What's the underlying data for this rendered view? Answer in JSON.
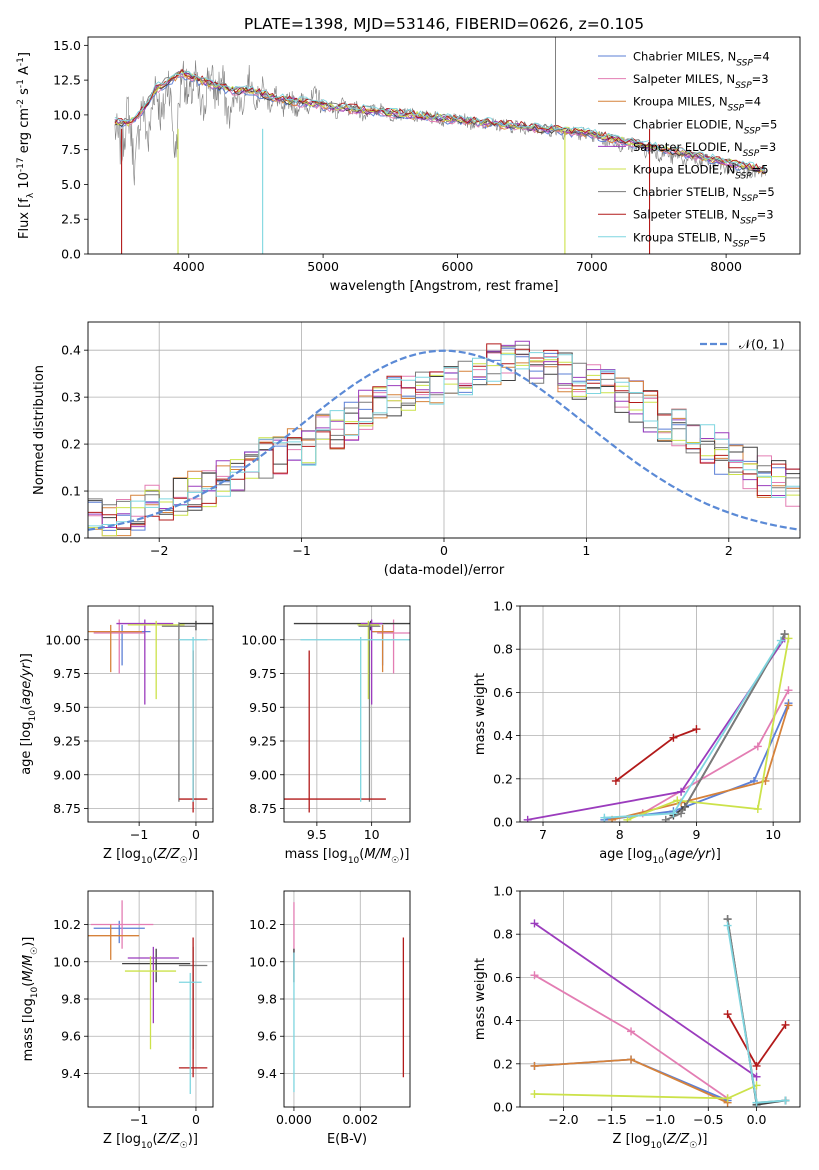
{
  "figure": {
    "title": "PLATE=1398, MJD=53146, FIBERID=0626, z=0.105"
  },
  "colors": {
    "Chabrier MILES": "#5b7fd6",
    "Salpeter MILES": "#e37db3",
    "Kroupa MILES": "#d6823a",
    "Chabrier ELODIE": "#404040",
    "Salpeter ELODIE": "#9b3cbd",
    "Kroupa ELODIE": "#cce24a",
    "Chabrier STELIB": "#7a7a7a",
    "Salpeter STELIB": "#b21a1a",
    "Kroupa STELIB": "#7fd6e0",
    "data": "#808080",
    "normal": "#5b8ad6"
  },
  "chart_data": [
    {
      "id": "spectrum",
      "type": "line",
      "title": "PLATE=1398, MJD=53146, FIBERID=0626, z=0.105",
      "xlabel": "wavelength [Angstrom, rest frame]",
      "ylabel": "Flux [f_λ 10^-17 erg cm^-2 s^-1 A^-1]",
      "xlim": [
        3250,
        8550
      ],
      "ylim": [
        0,
        15.6
      ],
      "xticks": [
        4000,
        5000,
        6000,
        7000,
        8000
      ],
      "yticks": [
        0.0,
        2.5,
        5.0,
        7.5,
        10.0,
        12.5,
        15.0
      ],
      "grid": false,
      "legend": "top-right",
      "legend_entries": [
        {
          "series": "Chabrier MILES",
          "label": "Chabrier MILES, N_SSP=4"
        },
        {
          "series": "Salpeter MILES",
          "label": "Salpeter MILES, N_SSP=3"
        },
        {
          "series": "Kroupa MILES",
          "label": "Kroupa MILES, N_SSP=4"
        },
        {
          "series": "Chabrier ELODIE",
          "label": "Chabrier ELODIE, N_SSP=5"
        },
        {
          "series": "Salpeter ELODIE",
          "label": "Salpeter ELODIE, N_SSP=3"
        },
        {
          "series": "Kroupa ELODIE",
          "label": "Kroupa ELODIE, N_SSP=5"
        },
        {
          "series": "Chabrier STELIB",
          "label": "Chabrier STELIB, N_SSP=5"
        },
        {
          "series": "Salpeter STELIB",
          "label": "Salpeter STELIB, N_SSP=3"
        },
        {
          "series": "Kroupa STELIB",
          "label": "Kroupa STELIB, N_SSP=5"
        }
      ],
      "data_wavelength": [
        3450,
        3500,
        3550,
        3600,
        3650,
        3700,
        3750,
        3800,
        3850,
        3900,
        3950,
        4000,
        4050,
        4100,
        4150,
        4200,
        4250,
        4300,
        4350,
        4400,
        4450,
        4500,
        4550,
        4600,
        4650,
        4700,
        4750,
        4800,
        4850,
        4900,
        4950,
        5000,
        5050,
        5100,
        5150,
        5200,
        5250,
        5300,
        5350,
        5400,
        5450,
        5500,
        5550,
        5600,
        5650,
        5700,
        5750,
        5800,
        5850,
        5900,
        5950,
        6000,
        6050,
        6100,
        6150,
        6200,
        6250,
        6300,
        6350,
        6400,
        6450,
        6500,
        6550,
        6600,
        6650,
        6700,
        6750,
        6800,
        6850,
        6900,
        6950,
        7000,
        7050,
        7100,
        7150,
        7200,
        7250,
        7300,
        7350,
        7400,
        7450,
        7500,
        7550,
        7600,
        7650,
        7700,
        7750,
        7800,
        7850,
        7900,
        7950,
        8000,
        8050,
        8100,
        8150,
        8200,
        8250,
        8300
      ],
      "data_flux": [
        9.0,
        7.5,
        10.5,
        6.0,
        11.0,
        8.0,
        12.5,
        9.5,
        12.8,
        7.0,
        13.5,
        11.0,
        12.5,
        10.0,
        13.0,
        11.5,
        12.5,
        9.5,
        11.8,
        10.5,
        12.8,
        11.0,
        12.0,
        10.8,
        11.5,
        10.0,
        11.3,
        10.5,
        11.0,
        10.8,
        11.5,
        10.5,
        10.8,
        10.0,
        10.9,
        10.2,
        10.6,
        9.8,
        10.4,
        10.3,
        10.5,
        9.9,
        10.1,
        10.0,
        10.2,
        9.6,
        10.0,
        9.8,
        9.9,
        9.4,
        9.8,
        9.6,
        9.7,
        9.3,
        9.5,
        9.4,
        9.5,
        9.2,
        9.4,
        9.1,
        9.3,
        9.0,
        9.2,
        8.9,
        9.1,
        8.8,
        9.0,
        8.6,
        8.9,
        8.5,
        8.8,
        8.3,
        8.6,
        8.0,
        8.3,
        7.6,
        8.1,
        7.6,
        7.9,
        7.3,
        7.7,
        7.0,
        7.4,
        6.8,
        7.2,
        6.5,
        7.0,
        6.3,
        6.9,
        6.2,
        6.6,
        6.0,
        6.3,
        5.9,
        6.1,
        5.8,
        5.9,
        5.7
      ],
      "model_wavelength": [
        3450,
        3550,
        3650,
        3750,
        3850,
        3950,
        4050,
        4150,
        4250,
        4350,
        4450,
        4550,
        4650,
        4750,
        4850,
        4950,
        5050,
        5150,
        5250,
        5350,
        5450,
        5550,
        5650,
        5750,
        5850,
        5950,
        6050,
        6150,
        6250,
        6350,
        6450,
        6550,
        6650,
        6750,
        6850,
        6950,
        7050,
        7150,
        7250,
        7350,
        7450,
        7550,
        7650,
        7750,
        7850,
        7950,
        8050,
        8150,
        8250,
        8300
      ],
      "model_flux": [
        9.5,
        9.4,
        10.2,
        11.8,
        12.5,
        13.0,
        12.6,
        12.3,
        12.0,
        11.7,
        11.8,
        11.5,
        11.2,
        11.0,
        10.9,
        10.8,
        10.6,
        10.5,
        10.4,
        10.3,
        10.2,
        10.1,
        10.0,
        9.9,
        9.8,
        9.7,
        9.6,
        9.5,
        9.4,
        9.3,
        9.2,
        9.1,
        9.0,
        8.9,
        8.8,
        8.7,
        8.5,
        8.3,
        8.1,
        7.9,
        7.7,
        7.5,
        7.3,
        7.1,
        6.9,
        6.7,
        6.5,
        6.3,
        6.1,
        6.0
      ]
    },
    {
      "id": "residuals",
      "type": "bar",
      "xlabel": "(data-model)/error",
      "ylabel": "Normed distribution",
      "xlim": [
        -2.5,
        2.5
      ],
      "ylim": [
        0,
        0.46
      ],
      "xticks": [
        -2,
        -1,
        0,
        1,
        2
      ],
      "yticks": [
        0.0,
        0.1,
        0.2,
        0.3,
        0.4
      ],
      "grid": true,
      "legend": "top-right",
      "legend_label": "𝒩(0, 1)",
      "bin_width": 0.1,
      "hist_base": [
        0.04,
        0.04,
        0.05,
        0.06,
        0.07,
        0.08,
        0.09,
        0.1,
        0.11,
        0.12,
        0.14,
        0.15,
        0.17,
        0.18,
        0.19,
        0.2,
        0.22,
        0.23,
        0.25,
        0.27,
        0.28,
        0.3,
        0.31,
        0.32,
        0.33,
        0.34,
        0.35,
        0.36,
        0.37,
        0.38,
        0.38,
        0.37,
        0.36,
        0.35,
        0.34,
        0.33,
        0.32,
        0.31,
        0.29,
        0.27,
        0.25,
        0.24,
        0.22,
        0.2,
        0.18,
        0.17,
        0.15,
        0.13,
        0.12,
        0.11
      ]
    },
    {
      "id": "age-vs-Z",
      "type": "scatter",
      "xlabel": "Z [log10(Z/Z☉)]",
      "ylabel": "age  [log10(age/yr)]",
      "xlim": [
        -1.9,
        0.3
      ],
      "ylim": [
        8.65,
        10.25
      ],
      "xticks": [
        -1,
        0
      ],
      "yticks": [
        8.75,
        9.0,
        9.25,
        9.5,
        9.75,
        10.0
      ],
      "grid": true,
      "points": [
        {
          "series": "Chabrier MILES",
          "x": -1.3,
          "y": 10.06,
          "xerr": 0.5,
          "yerr_lo": 0.25,
          "yerr_hi": 0.05
        },
        {
          "series": "Salpeter MILES",
          "x": -1.35,
          "y": 10.05,
          "xerr": 0.45,
          "yerr_lo": 0.3,
          "yerr_hi": 0.1
        },
        {
          "series": "Kroupa MILES",
          "x": -1.5,
          "y": 10.06,
          "xerr": 0.55,
          "yerr_lo": 0.3,
          "yerr_hi": 0.05
        },
        {
          "series": "Chabrier ELODIE",
          "x": 0.0,
          "y": 10.12,
          "xerr": 0.3,
          "yerr_lo": 0.05,
          "yerr_hi": 0.02
        },
        {
          "series": "Salpeter ELODIE",
          "x": -0.9,
          "y": 10.12,
          "xerr": 0.5,
          "yerr_lo": 0.6,
          "yerr_hi": 0.03
        },
        {
          "series": "Kroupa ELODIE",
          "x": -0.7,
          "y": 10.11,
          "xerr": 0.5,
          "yerr_lo": 0.55,
          "yerr_hi": 0.03
        },
        {
          "series": "Chabrier STELIB",
          "x": -0.3,
          "y": 10.1,
          "xerr": 0.3,
          "yerr_lo": 1.3,
          "yerr_hi": 0.03
        },
        {
          "series": "Salpeter STELIB",
          "x": -0.05,
          "y": 8.82,
          "xerr": 0.25,
          "yerr_lo": 0.1,
          "yerr_hi": 1.1
        },
        {
          "series": "Kroupa STELIB",
          "x": -0.05,
          "y": 10.0,
          "xerr": 0.25,
          "yerr_lo": 1.2,
          "yerr_hi": 0.02
        }
      ]
    },
    {
      "id": "age-vs-mass",
      "type": "scatter",
      "xlabel": "mass [log10(M/M☉)]",
      "ylabel": "",
      "xlim": [
        9.2,
        10.35
      ],
      "ylim": [
        8.65,
        10.25
      ],
      "xticks": [
        9.5,
        10.0
      ],
      "yticks": [
        8.75,
        9.0,
        9.25,
        9.5,
        9.75,
        10.0
      ],
      "grid": true,
      "points": [
        {
          "series": "Chabrier MILES",
          "x": 10.1,
          "y": 10.06,
          "xerr": 0.1,
          "yerr_lo": 0.25,
          "yerr_hi": 0.05
        },
        {
          "series": "Salpeter MILES",
          "x": 10.2,
          "y": 10.05,
          "xerr": 0.15,
          "yerr_lo": 0.3,
          "yerr_hi": 0.1
        },
        {
          "series": "Kroupa MILES",
          "x": 10.1,
          "y": 10.06,
          "xerr": 0.1,
          "yerr_lo": 0.3,
          "yerr_hi": 0.05
        },
        {
          "series": "Chabrier ELODIE",
          "x": 9.99,
          "y": 10.12,
          "xerr": 0.7,
          "yerr_lo": 0.05,
          "yerr_hi": 0.02
        },
        {
          "series": "Salpeter ELODIE",
          "x": 10.0,
          "y": 10.12,
          "xerr": 0.1,
          "yerr_lo": 0.6,
          "yerr_hi": 0.03
        },
        {
          "series": "Kroupa ELODIE",
          "x": 9.97,
          "y": 10.11,
          "xerr": 0.1,
          "yerr_lo": 0.55,
          "yerr_hi": 0.03
        },
        {
          "series": "Chabrier STELIB",
          "x": 9.98,
          "y": 10.1,
          "xerr": 0.1,
          "yerr_lo": 1.3,
          "yerr_hi": 0.03
        },
        {
          "series": "Salpeter STELIB",
          "x": 9.43,
          "y": 8.82,
          "xerr": 0.7,
          "yerr_lo": 0.1,
          "yerr_hi": 1.1
        },
        {
          "series": "Kroupa STELIB",
          "x": 9.9,
          "y": 10.0,
          "xerr": 0.55,
          "yerr_lo": 1.2,
          "yerr_hi": 0.02
        }
      ]
    },
    {
      "id": "weight-vs-age",
      "type": "line",
      "xlabel": "age  [log10(age/yr)]",
      "ylabel": "mass weight",
      "xlim": [
        6.7,
        10.35
      ],
      "ylim": [
        0,
        1.0
      ],
      "xticks": [
        7,
        8,
        9,
        10
      ],
      "yticks": [
        0.0,
        0.2,
        0.4,
        0.6,
        0.8,
        1.0
      ],
      "grid": true,
      "series": [
        {
          "name": "Chabrier MILES",
          "x": [
            7.8,
            8.7,
            9.75,
            10.2
          ],
          "y": [
            0.01,
            0.05,
            0.19,
            0.55
          ]
        },
        {
          "name": "Salpeter MILES",
          "x": [
            8.3,
            9.8,
            10.2
          ],
          "y": [
            0.04,
            0.35,
            0.61
          ]
        },
        {
          "name": "Kroupa MILES",
          "x": [
            7.9,
            8.8,
            9.9,
            10.2
          ],
          "y": [
            0.01,
            0.09,
            0.19,
            0.54
          ]
        },
        {
          "name": "Chabrier ELODIE",
          "x": [
            8.7,
            8.85,
            10.15
          ],
          "y": [
            0.03,
            0.07,
            0.87
          ]
        },
        {
          "name": "Salpeter ELODIE",
          "x": [
            6.8,
            8.8,
            10.15
          ],
          "y": [
            0.01,
            0.14,
            0.85
          ]
        },
        {
          "name": "Kroupa ELODIE",
          "x": [
            8.1,
            8.75,
            9.8,
            10.2
          ],
          "y": [
            0.01,
            0.1,
            0.06,
            0.85
          ]
        },
        {
          "name": "Chabrier STELIB",
          "x": [
            8.6,
            8.8,
            10.15
          ],
          "y": [
            0.01,
            0.04,
            0.87
          ]
        },
        {
          "name": "Salpeter STELIB",
          "x": [
            7.95,
            8.7,
            9.0
          ],
          "y": [
            0.19,
            0.39,
            0.43
          ]
        },
        {
          "name": "Kroupa STELIB",
          "x": [
            7.8,
            8.7,
            10.1
          ],
          "y": [
            0.02,
            0.04,
            0.84
          ]
        }
      ]
    },
    {
      "id": "mass-vs-Z",
      "type": "scatter",
      "xlabel": "Z [log10(Z/Z☉)]",
      "ylabel": "mass [log10(M/M☉)]",
      "xlim": [
        -1.9,
        0.3
      ],
      "ylim": [
        9.22,
        10.38
      ],
      "xticks": [
        -1,
        0
      ],
      "yticks": [
        9.4,
        9.6,
        9.8,
        10.0,
        10.2
      ],
      "grid": true,
      "points": [
        {
          "series": "Chabrier MILES",
          "x": -1.35,
          "y": 10.18,
          "xerr": 0.45,
          "yerr_lo": 0.08,
          "yerr_hi": 0.04
        },
        {
          "series": "Salpeter MILES",
          "x": -1.3,
          "y": 10.2,
          "xerr": 0.55,
          "yerr_lo": 0.13,
          "yerr_hi": 0.13
        },
        {
          "series": "Kroupa MILES",
          "x": -1.5,
          "y": 10.14,
          "xerr": 0.5,
          "yerr_lo": 0.13,
          "yerr_hi": 0.06
        },
        {
          "series": "Chabrier ELODIE",
          "x": -0.7,
          "y": 9.99,
          "xerr": 0.6,
          "yerr_lo": 0.1,
          "yerr_hi": 0.08
        },
        {
          "series": "Salpeter ELODIE",
          "x": -0.75,
          "y": 10.02,
          "xerr": 0.45,
          "yerr_lo": 0.35,
          "yerr_hi": 0.06
        },
        {
          "series": "Kroupa ELODIE",
          "x": -0.8,
          "y": 9.95,
          "xerr": 0.45,
          "yerr_lo": 0.42,
          "yerr_hi": 0.08
        },
        {
          "series": "Chabrier STELIB",
          "x": -0.05,
          "y": 9.98,
          "xerr": 0.25,
          "yerr_lo": 0.45,
          "yerr_hi": 0.1
        },
        {
          "series": "Salpeter STELIB",
          "x": -0.05,
          "y": 9.43,
          "xerr": 0.25,
          "yerr_lo": 0.05,
          "yerr_hi": 0.7
        },
        {
          "series": "Kroupa STELIB",
          "x": -0.1,
          "y": 9.89,
          "xerr": 0.2,
          "yerr_lo": 0.6,
          "yerr_hi": 0.05
        }
      ]
    },
    {
      "id": "mass-vs-EBV",
      "type": "scatter",
      "xlabel": "E(B-V)",
      "ylabel": "",
      "xlim": [
        -0.0003,
        0.0035
      ],
      "ylim": [
        9.22,
        10.38
      ],
      "xticks": [
        0.0,
        0.002
      ],
      "xticklabels": [
        "0.000",
        "0.002"
      ],
      "yticks": [
        9.4,
        9.6,
        9.8,
        10.0,
        10.2
      ],
      "grid": true,
      "points": [
        {
          "series": "Salpeter MILES",
          "x": 0.0,
          "y": 10.1,
          "yerr_lo": 0.1,
          "yerr_hi": 0.22
        },
        {
          "series": "Chabrier ELODIE",
          "x": 0.0,
          "y": 9.99,
          "yerr_lo": 0.1,
          "yerr_hi": 0.08
        },
        {
          "series": "Kroupa STELIB",
          "x": 0.0,
          "y": 9.9,
          "yerr_lo": 0.6,
          "yerr_hi": 0.15
        },
        {
          "series": "Salpeter STELIB",
          "x": 0.0033,
          "y": 9.75,
          "yerr_lo": 0.37,
          "yerr_hi": 0.38
        }
      ]
    },
    {
      "id": "weight-vs-Z",
      "type": "line",
      "xlabel": "Z [log10(Z/Z☉)]",
      "ylabel": "mass weight",
      "xlim": [
        -2.45,
        0.45
      ],
      "ylim": [
        0,
        1.0
      ],
      "xticks": [
        -2.0,
        -1.5,
        -1.0,
        -0.5,
        0.0
      ],
      "yticks": [
        0.0,
        0.2,
        0.4,
        0.6,
        0.8,
        1.0
      ],
      "grid": true,
      "series": [
        {
          "name": "Chabrier MILES",
          "x": [
            -2.3,
            -1.3,
            -0.3
          ],
          "y": [
            0.19,
            0.22,
            0.03
          ]
        },
        {
          "name": "Salpeter MILES",
          "x": [
            -2.3,
            -1.3,
            -0.3
          ],
          "y": [
            0.61,
            0.35,
            0.04
          ]
        },
        {
          "name": "Kroupa MILES",
          "x": [
            -2.3,
            -1.3,
            -0.3
          ],
          "y": [
            0.19,
            0.22,
            0.02
          ]
        },
        {
          "name": "Chabrier ELODIE",
          "x": [
            -0.3,
            0.0,
            0.3
          ],
          "y": [
            0.87,
            0.01,
            0.03
          ]
        },
        {
          "name": "Salpeter ELODIE",
          "x": [
            -2.3,
            0.0
          ],
          "y": [
            0.85,
            0.14
          ]
        },
        {
          "name": "Kroupa ELODIE",
          "x": [
            -2.3,
            -0.3,
            0.0
          ],
          "y": [
            0.06,
            0.04,
            0.1
          ]
        },
        {
          "name": "Chabrier STELIB",
          "x": [
            -0.3,
            0.0,
            0.3
          ],
          "y": [
            0.87,
            0.02,
            0.03
          ]
        },
        {
          "name": "Salpeter STELIB",
          "x": [
            -0.3,
            0.0,
            0.3
          ],
          "y": [
            0.43,
            0.19,
            0.38
          ]
        },
        {
          "name": "Kroupa STELIB",
          "x": [
            -0.3,
            0.0,
            0.3
          ],
          "y": [
            0.84,
            0.02,
            0.03
          ]
        }
      ]
    }
  ]
}
